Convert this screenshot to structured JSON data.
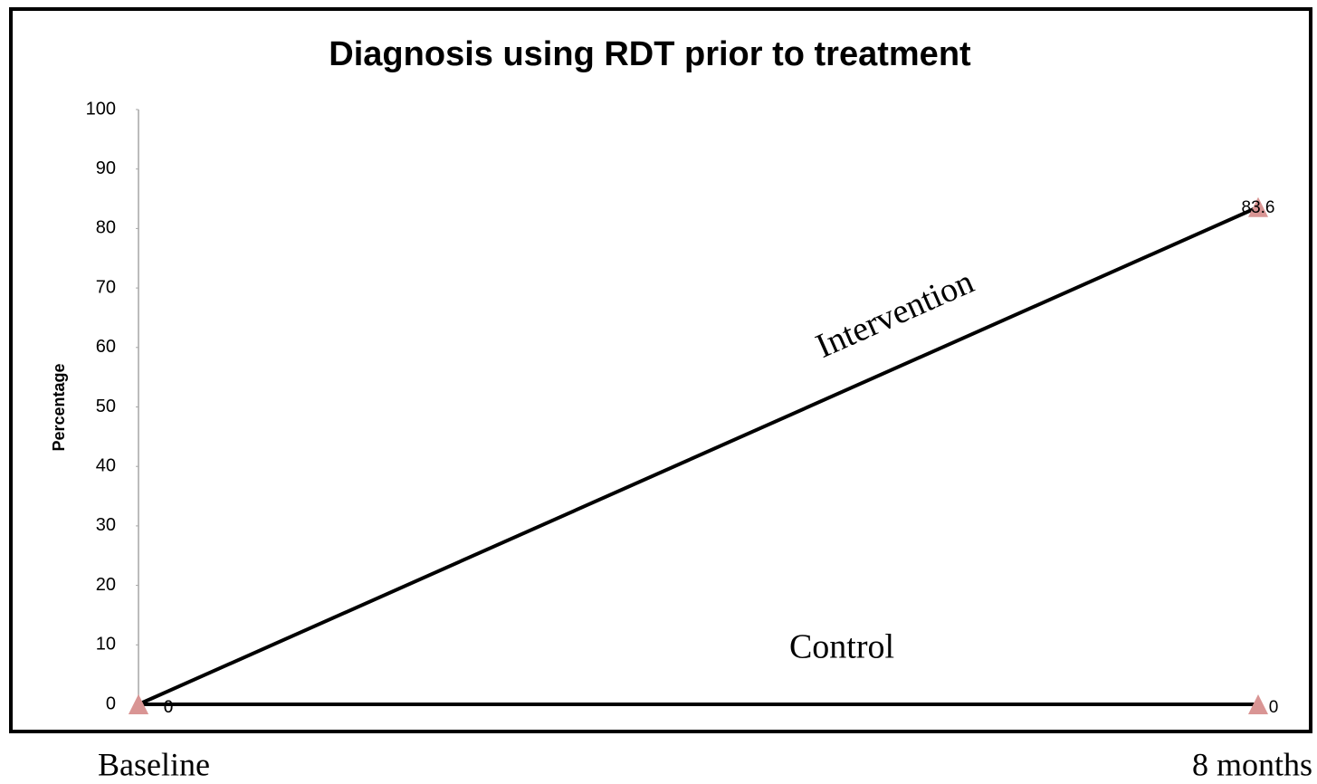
{
  "chart_data": {
    "type": "line",
    "title": "Diagnosis using RDT prior to treatment",
    "y_label": "Percentage",
    "categories": [
      "Baseline",
      "8 months"
    ],
    "series": [
      {
        "name": "Intervention",
        "color": "#000000",
        "marker_color": "#d99594",
        "values": [
          0,
          83.6
        ]
      },
      {
        "name": "Control",
        "color": "#000000",
        "marker_color": "#d99594",
        "values": [
          0,
          0
        ]
      }
    ],
    "ylim": [
      0,
      100
    ],
    "yticks": [
      0,
      10,
      20,
      30,
      40,
      50,
      60,
      70,
      80,
      90,
      100
    ],
    "grid": false
  }
}
